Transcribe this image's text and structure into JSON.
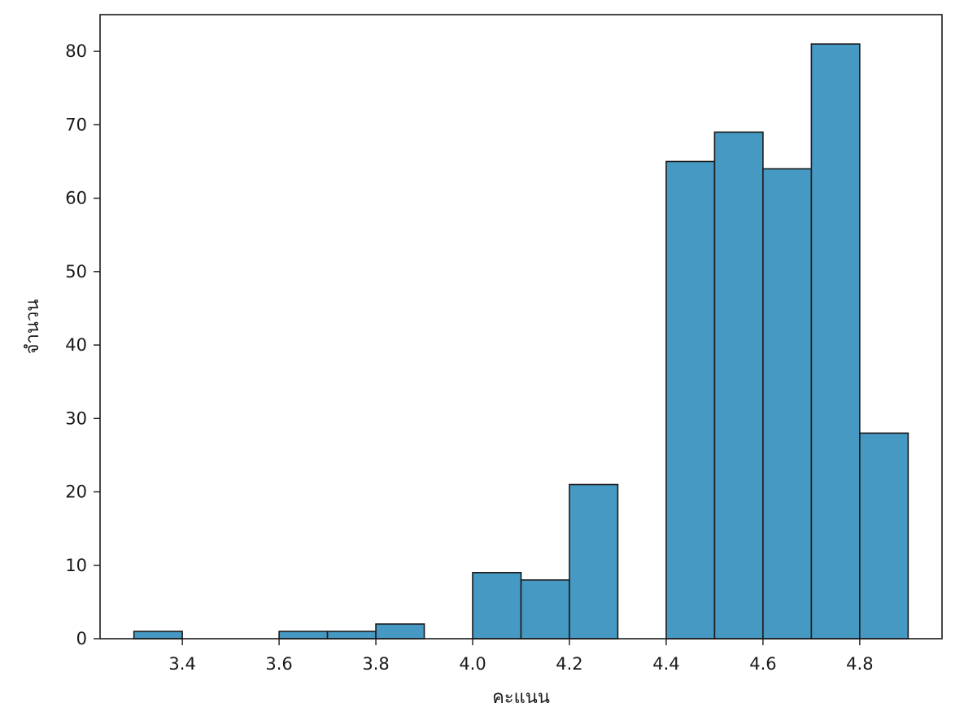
{
  "chart_data": {
    "type": "bar",
    "subtype": "histogram",
    "xlabel": "คะแนน",
    "ylabel": "จำนวน",
    "xlim": [
      3.23,
      4.97
    ],
    "ylim": [
      0,
      85
    ],
    "bin_width": 0.1,
    "bins": [
      {
        "start": 3.3,
        "end": 3.4,
        "count": 1
      },
      {
        "start": 3.4,
        "end": 3.5,
        "count": 0
      },
      {
        "start": 3.5,
        "end": 3.6,
        "count": 0
      },
      {
        "start": 3.6,
        "end": 3.7,
        "count": 1
      },
      {
        "start": 3.7,
        "end": 3.8,
        "count": 1
      },
      {
        "start": 3.8,
        "end": 3.9,
        "count": 2
      },
      {
        "start": 3.9,
        "end": 4.0,
        "count": 0
      },
      {
        "start": 4.0,
        "end": 4.1,
        "count": 9
      },
      {
        "start": 4.1,
        "end": 4.2,
        "count": 8
      },
      {
        "start": 4.2,
        "end": 4.3,
        "count": 21
      },
      {
        "start": 4.3,
        "end": 4.4,
        "count": 0
      },
      {
        "start": 4.4,
        "end": 4.5,
        "count": 65
      },
      {
        "start": 4.5,
        "end": 4.6,
        "count": 69
      },
      {
        "start": 4.6,
        "end": 4.7,
        "count": 64
      },
      {
        "start": 4.7,
        "end": 4.8,
        "count": 81
      },
      {
        "start": 4.8,
        "end": 4.9,
        "count": 28
      }
    ],
    "x_ticks": [
      {
        "value": 3.4,
        "label": "3.4"
      },
      {
        "value": 3.6,
        "label": "3.6"
      },
      {
        "value": 3.8,
        "label": "3.8"
      },
      {
        "value": 4.0,
        "label": "4.0"
      },
      {
        "value": 4.2,
        "label": "4.2"
      },
      {
        "value": 4.4,
        "label": "4.4"
      },
      {
        "value": 4.6,
        "label": "4.6"
      },
      {
        "value": 4.8,
        "label": "4.8"
      }
    ],
    "y_ticks": [
      {
        "value": 0,
        "label": "0"
      },
      {
        "value": 10,
        "label": "10"
      },
      {
        "value": 20,
        "label": "20"
      },
      {
        "value": 30,
        "label": "30"
      },
      {
        "value": 40,
        "label": "40"
      },
      {
        "value": 50,
        "label": "50"
      },
      {
        "value": 60,
        "label": "60"
      },
      {
        "value": 70,
        "label": "70"
      },
      {
        "value": 80,
        "label": "80"
      }
    ],
    "grid": false,
    "legend": "none",
    "colors": {
      "bar_fill": "#4599c3",
      "bar_edge": "#1c1c1c",
      "axis": "#1a1a1a"
    }
  }
}
